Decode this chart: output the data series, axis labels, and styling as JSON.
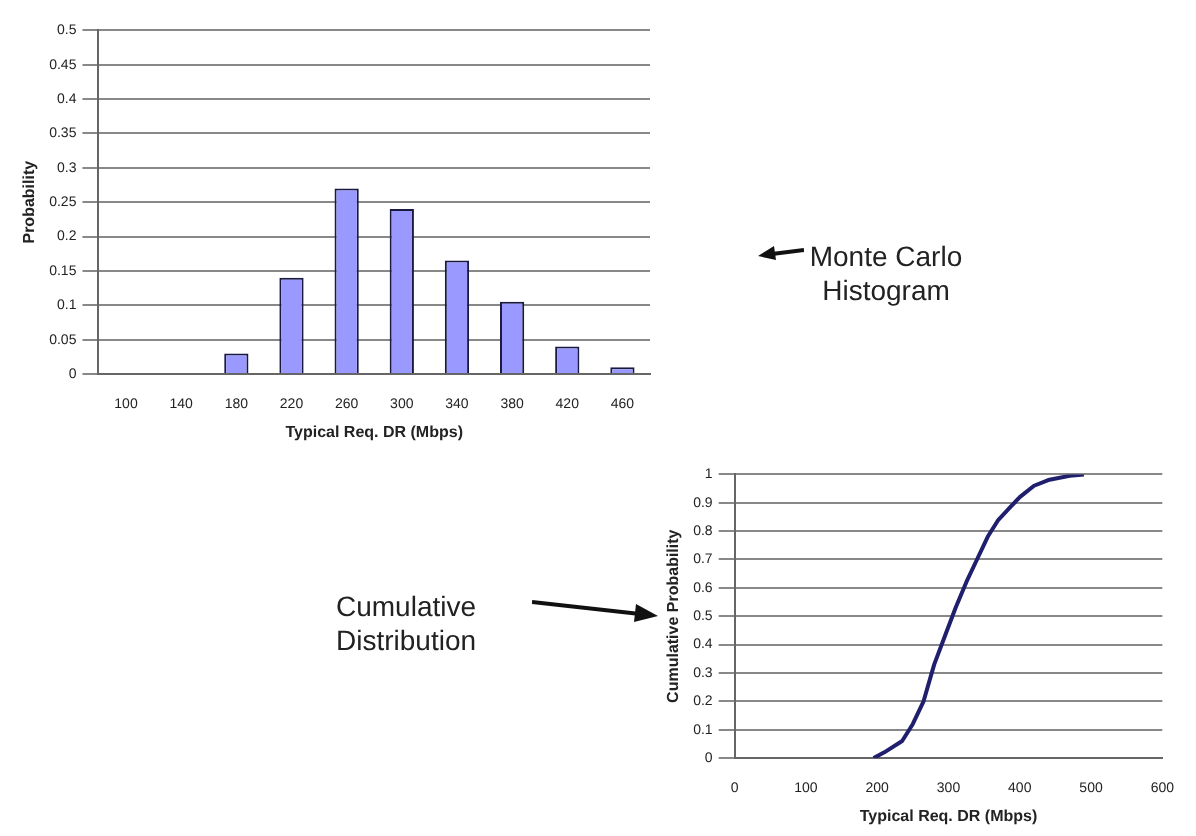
{
  "chart_data": [
    {
      "type": "bar",
      "xlabel": "Typical Req. DR (Mbps)",
      "ylabel": "Probability",
      "categories": [
        "100",
        "140",
        "180",
        "220",
        "260",
        "300",
        "340",
        "380",
        "420",
        "460"
      ],
      "series": [
        {
          "color": "#9999ff",
          "values": [
            0,
            0,
            0.03,
            0.14,
            0.27,
            0.24,
            0.165,
            0.105,
            0.04,
            0.01
          ]
        }
      ],
      "ylim": [
        0,
        0.5
      ],
      "yticks": [
        0,
        0.05,
        0.1,
        0.15,
        0.2,
        0.25,
        0.3,
        0.35,
        0.4,
        0.45,
        0.5
      ],
      "grid": "y",
      "legend": false,
      "annotations": [
        "Monte Carlo Histogram"
      ]
    },
    {
      "type": "line",
      "xlabel": "Typical Req. DR (Mbps)",
      "ylabel": "Cumulative Probability",
      "series": [
        {
          "color": "#1f1f6e",
          "x": [
            195,
            210,
            235,
            250,
            265,
            280,
            295,
            310,
            325,
            340,
            355,
            370,
            385,
            400,
            420,
            440,
            470,
            490
          ],
          "values": [
            0,
            0.02,
            0.06,
            0.12,
            0.2,
            0.33,
            0.43,
            0.53,
            0.62,
            0.7,
            0.78,
            0.84,
            0.88,
            0.92,
            0.96,
            0.98,
            0.995,
            1
          ]
        }
      ],
      "xlim": [
        0,
        600
      ],
      "xticks": [
        0,
        100,
        200,
        300,
        400,
        500,
        600
      ],
      "ylim": [
        0,
        1
      ],
      "yticks": [
        0,
        0.1,
        0.2,
        0.3,
        0.4,
        0.5,
        0.6,
        0.7,
        0.8,
        0.9,
        1
      ],
      "grid": "y",
      "legend": false,
      "marker": "none",
      "annotations": [
        "Cumulative Distribution"
      ]
    }
  ]
}
